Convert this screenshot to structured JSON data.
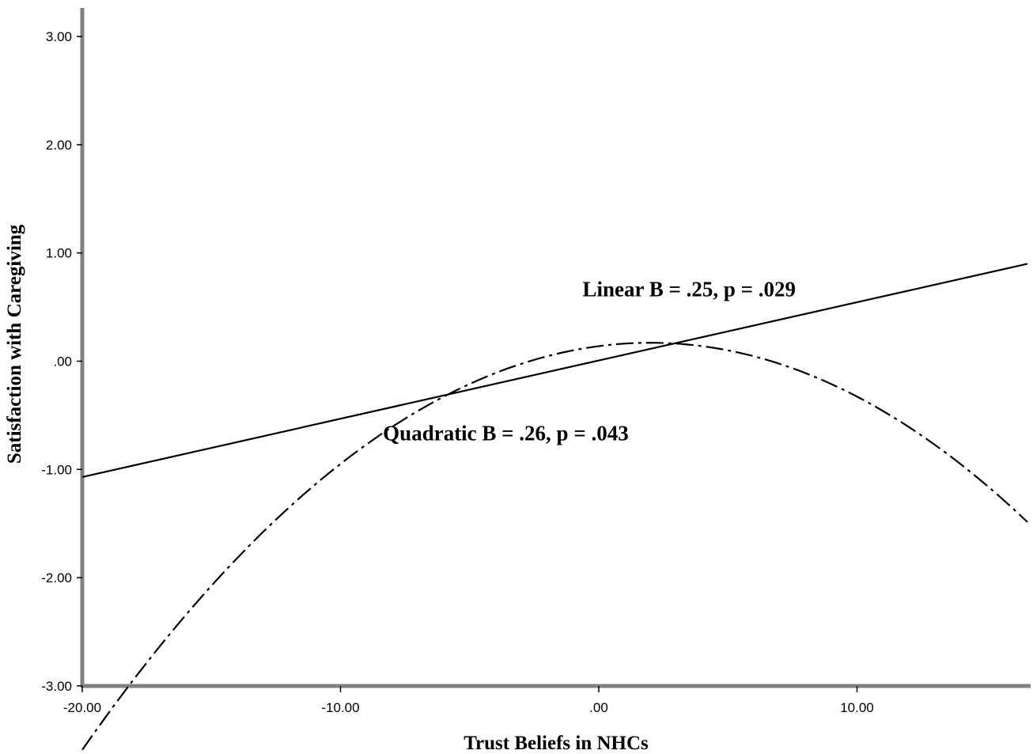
{
  "chart_data": {
    "type": "line",
    "title": "",
    "xlabel": "Trust Beliefs in NHCs",
    "ylabel": "Satisfaction with Caregiving",
    "xlim": [
      -20,
      16.6
    ],
    "ylim": [
      -3,
      3.3
    ],
    "x_ticks": [
      -20,
      -10,
      0,
      10
    ],
    "x_tick_labels": [
      "-20.00",
      "-10.00",
      ".00",
      "10.00"
    ],
    "y_ticks": [
      -3,
      -2,
      -1,
      0,
      1,
      2,
      3
    ],
    "y_tick_labels": [
      "-3.00",
      "-2.00",
      "-1.00",
      ".00",
      "1.00",
      "2.00",
      "3.00"
    ],
    "grid": false,
    "legend": "none",
    "series": [
      {
        "kind": "linear",
        "style": "solid",
        "x": [
          -20,
          16.6
        ],
        "y": [
          -1.07,
          0.9
        ]
      },
      {
        "kind": "quadratic",
        "style": "dash-dot",
        "x": [
          -20,
          -15,
          -10,
          -7.5,
          -5,
          -2.5,
          0,
          2,
          4,
          6,
          8,
          10,
          12,
          14,
          16.6
        ],
        "y": [
          -2.95,
          -1.81,
          -0.93,
          -0.58,
          -0.29,
          -0.06,
          0.1,
          0.17,
          0.15,
          0.05,
          -0.13,
          -0.38,
          -0.62,
          -0.86,
          -1.17
        ]
      }
    ],
    "annotations": [
      {
        "text": "Linear B = .25, p = .029",
        "x": 3.5,
        "y": 0.6
      },
      {
        "text": "Quadratic B = .26, p = .043",
        "x": -3.6,
        "y": -0.73
      }
    ],
    "colors": {
      "axis": "#808080",
      "line": "#000000",
      "background": "#ffffff"
    }
  }
}
